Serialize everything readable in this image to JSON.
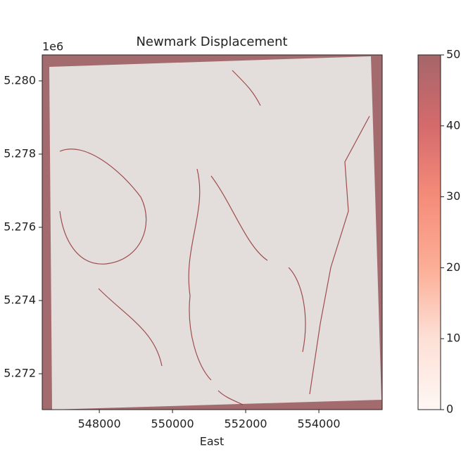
{
  "chart_data": {
    "type": "image",
    "title": "Newmark Displacement",
    "xlabel": "East",
    "offset_label": "1e6",
    "xlim": [
      546440,
      555730
    ],
    "xticks": [
      548000,
      550000,
      552000,
      554000
    ],
    "ylim": [
      5271020,
      5280710
    ],
    "yticks": [
      {
        "value": 5272000,
        "label": "5.272"
      },
      {
        "value": 5274000,
        "label": "5.274"
      },
      {
        "value": 5276000,
        "label": "5.276"
      },
      {
        "value": 5278000,
        "label": "5.278"
      },
      {
        "value": 5280000,
        "label": "5.280"
      }
    ],
    "clim": [
      0,
      50
    ],
    "cticks": [
      0,
      10,
      20,
      30,
      40,
      50
    ]
  }
}
